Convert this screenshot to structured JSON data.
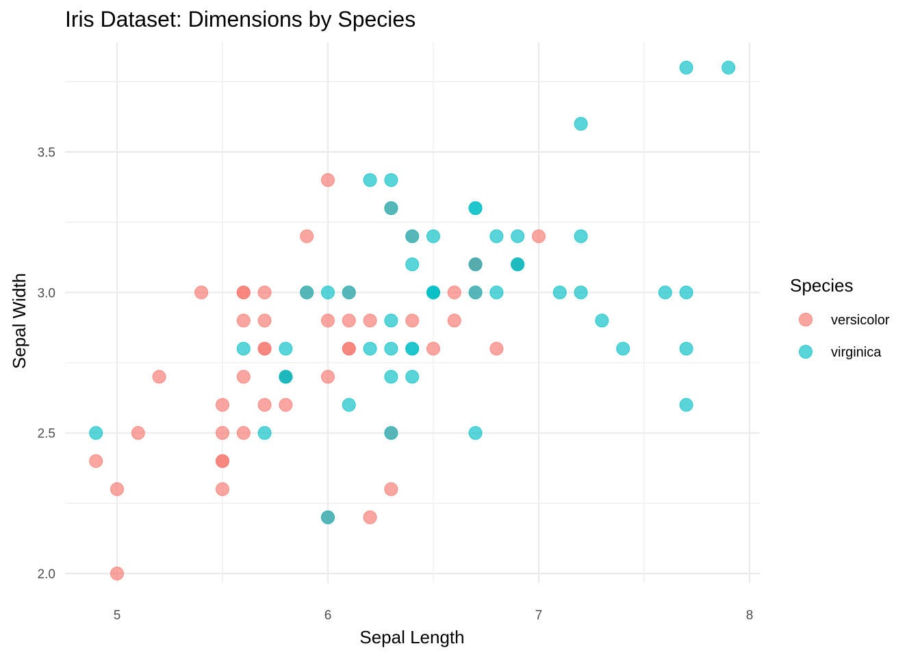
{
  "chart_data": {
    "type": "scatter",
    "title": "Iris Dataset: Dimensions by Species",
    "xlabel": "Sepal Length",
    "ylabel": "Sepal Width",
    "xlim": [
      4.82,
      8.05
    ],
    "ylim": [
      1.92,
      3.88
    ],
    "x_ticks": [
      5,
      6,
      7,
      8
    ],
    "x_tick_labels": [
      "5",
      "6",
      "7",
      "8"
    ],
    "y_ticks": [
      2.0,
      2.5,
      3.0,
      3.5
    ],
    "y_tick_labels": [
      "2.0",
      "2.5",
      "3.0",
      "3.5"
    ],
    "x_minor_ticks": [
      5.5,
      6.5,
      7.5
    ],
    "y_minor_ticks": [
      2.25,
      2.75,
      3.25,
      3.75
    ],
    "grid": true,
    "legend": {
      "title": "Species",
      "placement": "right"
    },
    "series": [
      {
        "name": "versicolor",
        "color": "#F8766D",
        "points": [
          [
            7.0,
            3.2
          ],
          [
            6.4,
            3.2
          ],
          [
            6.9,
            3.1
          ],
          [
            5.5,
            2.3
          ],
          [
            6.5,
            2.8
          ],
          [
            5.7,
            2.8
          ],
          [
            6.3,
            3.3
          ],
          [
            4.9,
            2.4
          ],
          [
            6.6,
            2.9
          ],
          [
            5.2,
            2.7
          ],
          [
            5.0,
            2.0
          ],
          [
            5.9,
            3.0
          ],
          [
            6.0,
            2.2
          ],
          [
            6.1,
            2.9
          ],
          [
            5.6,
            2.9
          ],
          [
            6.7,
            3.1
          ],
          [
            5.6,
            3.0
          ],
          [
            5.8,
            2.7
          ],
          [
            6.2,
            2.2
          ],
          [
            5.6,
            2.5
          ],
          [
            5.9,
            3.2
          ],
          [
            6.1,
            2.8
          ],
          [
            6.3,
            2.5
          ],
          [
            6.1,
            2.8
          ],
          [
            6.4,
            2.9
          ],
          [
            6.6,
            3.0
          ],
          [
            6.8,
            2.8
          ],
          [
            6.7,
            3.0
          ],
          [
            6.0,
            2.9
          ],
          [
            5.7,
            2.6
          ],
          [
            5.5,
            2.4
          ],
          [
            5.5,
            2.4
          ],
          [
            5.8,
            2.7
          ],
          [
            6.0,
            2.7
          ],
          [
            5.4,
            3.0
          ],
          [
            6.0,
            3.4
          ],
          [
            6.7,
            3.1
          ],
          [
            6.3,
            2.3
          ],
          [
            5.6,
            3.0
          ],
          [
            5.5,
            2.5
          ],
          [
            5.5,
            2.6
          ],
          [
            6.1,
            3.0
          ],
          [
            5.8,
            2.6
          ],
          [
            5.0,
            2.3
          ],
          [
            5.6,
            2.7
          ],
          [
            5.7,
            3.0
          ],
          [
            5.7,
            2.9
          ],
          [
            6.2,
            2.9
          ],
          [
            5.1,
            2.5
          ],
          [
            5.7,
            2.8
          ]
        ]
      },
      {
        "name": "virginica",
        "color": "#00BFC4",
        "points": [
          [
            6.3,
            3.3
          ],
          [
            5.8,
            2.7
          ],
          [
            7.1,
            3.0
          ],
          [
            6.3,
            2.9
          ],
          [
            6.5,
            3.0
          ],
          [
            7.6,
            3.0
          ],
          [
            4.9,
            2.5
          ],
          [
            7.3,
            2.9
          ],
          [
            6.7,
            2.5
          ],
          [
            7.2,
            3.6
          ],
          [
            6.5,
            3.2
          ],
          [
            6.4,
            2.7
          ],
          [
            6.8,
            3.0
          ],
          [
            5.7,
            2.5
          ],
          [
            5.8,
            2.8
          ],
          [
            6.4,
            3.2
          ],
          [
            6.5,
            3.0
          ],
          [
            7.7,
            3.8
          ],
          [
            7.7,
            2.6
          ],
          [
            6.0,
            2.2
          ],
          [
            6.9,
            3.2
          ],
          [
            5.6,
            2.8
          ],
          [
            7.7,
            2.8
          ],
          [
            6.3,
            2.7
          ],
          [
            6.7,
            3.3
          ],
          [
            7.2,
            3.2
          ],
          [
            6.2,
            2.8
          ],
          [
            6.1,
            3.0
          ],
          [
            6.4,
            2.8
          ],
          [
            7.2,
            3.0
          ],
          [
            7.4,
            2.8
          ],
          [
            7.9,
            3.8
          ],
          [
            6.4,
            2.8
          ],
          [
            6.3,
            2.8
          ],
          [
            6.1,
            2.6
          ],
          [
            7.7,
            3.0
          ],
          [
            6.3,
            3.4
          ],
          [
            6.4,
            3.1
          ],
          [
            6.0,
            3.0
          ],
          [
            6.9,
            3.1
          ],
          [
            6.7,
            3.1
          ],
          [
            6.9,
            3.1
          ],
          [
            5.8,
            2.7
          ],
          [
            6.8,
            3.2
          ],
          [
            6.7,
            3.3
          ],
          [
            6.7,
            3.0
          ],
          [
            6.3,
            2.5
          ],
          [
            6.5,
            3.0
          ],
          [
            6.2,
            3.4
          ],
          [
            5.9,
            3.0
          ]
        ]
      }
    ]
  }
}
